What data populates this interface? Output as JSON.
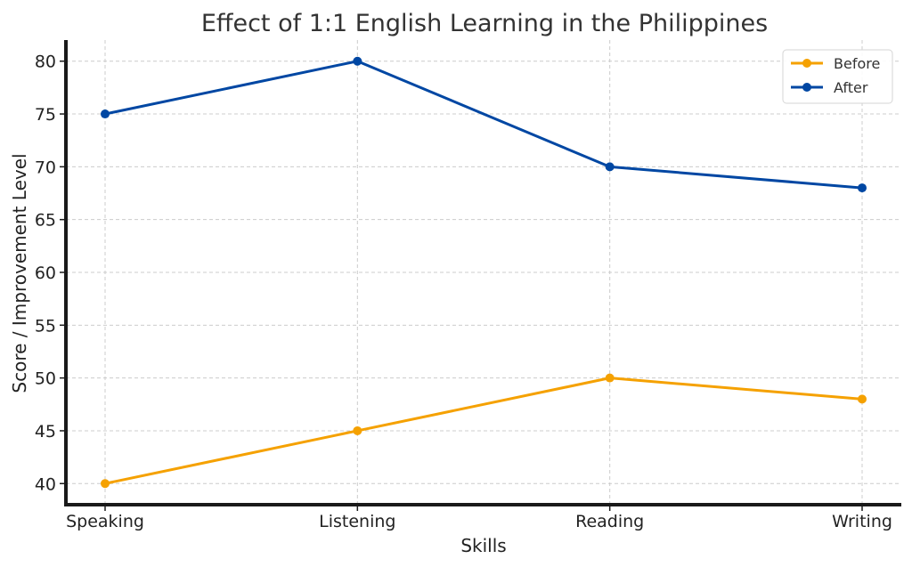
{
  "chart_data": {
    "type": "line",
    "title": "Effect of 1:1 English Learning in the Philippines",
    "xlabel": "Skills",
    "ylabel": "Score / Improvement Level",
    "categories": [
      "Speaking",
      "Listening",
      "Reading",
      "Writing"
    ],
    "yticks": [
      40,
      45,
      50,
      55,
      60,
      65,
      70,
      75,
      80
    ],
    "ylim": [
      38,
      82
    ],
    "grid": true,
    "legend_position": "top-right",
    "series": [
      {
        "name": "Before",
        "color": "#f5a100",
        "values": [
          40,
          45,
          50,
          48
        ]
      },
      {
        "name": "After",
        "color": "#0047a3",
        "values": [
          75,
          80,
          70,
          68
        ]
      }
    ]
  }
}
